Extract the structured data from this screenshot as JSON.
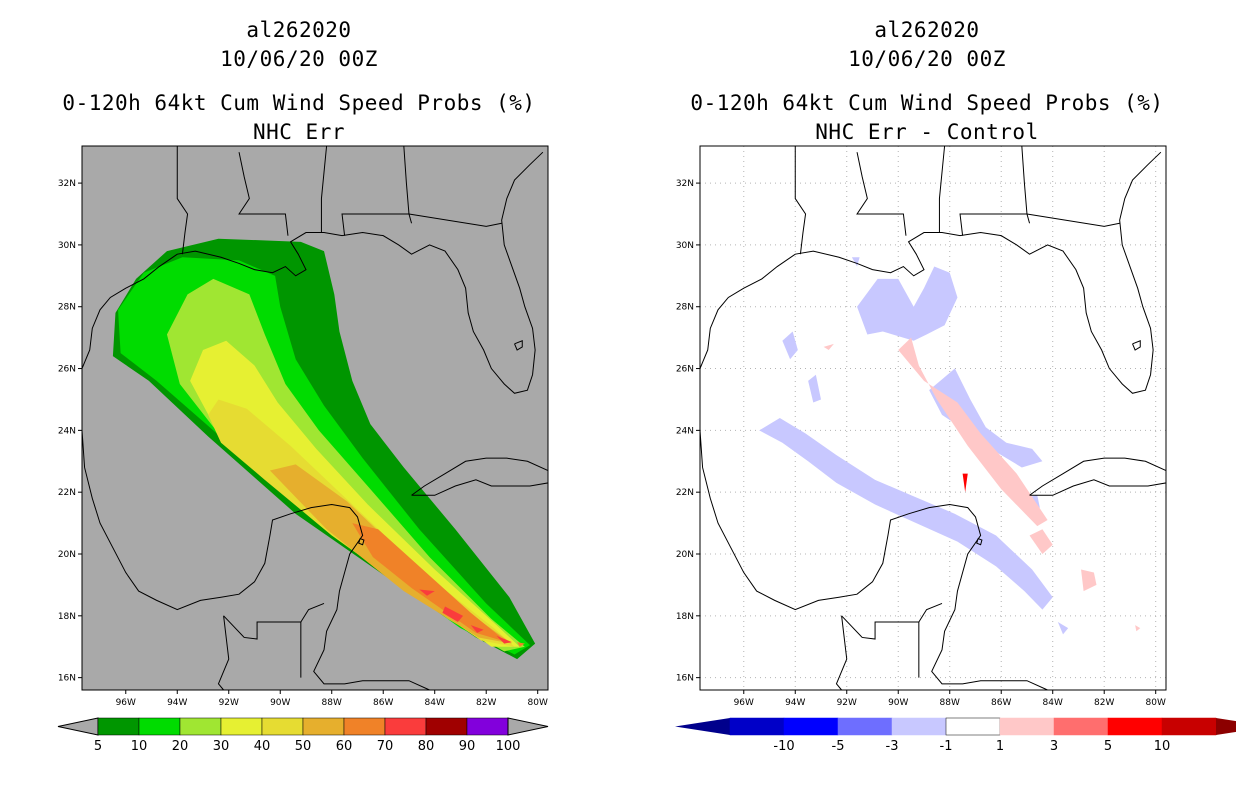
{
  "left_panel": {
    "storm_id": "al262020",
    "datetime": "10/06/20 00Z",
    "product": "0-120h 64kt Cum Wind Speed Probs (%)",
    "subtitle": "NHC Err",
    "colorbar": {
      "labels": [
        "5",
        "10",
        "20",
        "30",
        "40",
        "50",
        "60",
        "70",
        "80",
        "90",
        "100"
      ],
      "colors": [
        "#009600",
        "#00dc00",
        "#a0e632",
        "#e6f032",
        "#e6dc32",
        "#e6af2d",
        "#f08228",
        "#fa3c3c",
        "#a00000",
        "#8200dc"
      ]
    },
    "ocean_color": "#a9a9a9"
  },
  "right_panel": {
    "storm_id": "al262020",
    "datetime": "10/06/20 00Z",
    "product": "0-120h 64kt Cum Wind Speed Probs (%)",
    "subtitle": "NHC Err - Control",
    "colorbar": {
      "labels": [
        "-10",
        "-5",
        "-3",
        "-1",
        "1",
        "3",
        "5",
        "10"
      ],
      "colors": [
        "#0000c8",
        "#0000ff",
        "#6e6eff",
        "#c8c8ff",
        "#ffffff",
        "#ffc8c8",
        "#ff6e6e",
        "#ff0000",
        "#c80000"
      ],
      "end_colors": [
        "#00008c",
        "#8c0000"
      ]
    }
  },
  "axes": {
    "lat_labels": [
      "32N",
      "30N",
      "28N",
      "26N",
      "24N",
      "22N",
      "20N",
      "18N",
      "16N"
    ],
    "lon_labels": [
      "96W",
      "94W",
      "92W",
      "90W",
      "88W",
      "86W",
      "84W",
      "82W",
      "80W"
    ]
  }
}
